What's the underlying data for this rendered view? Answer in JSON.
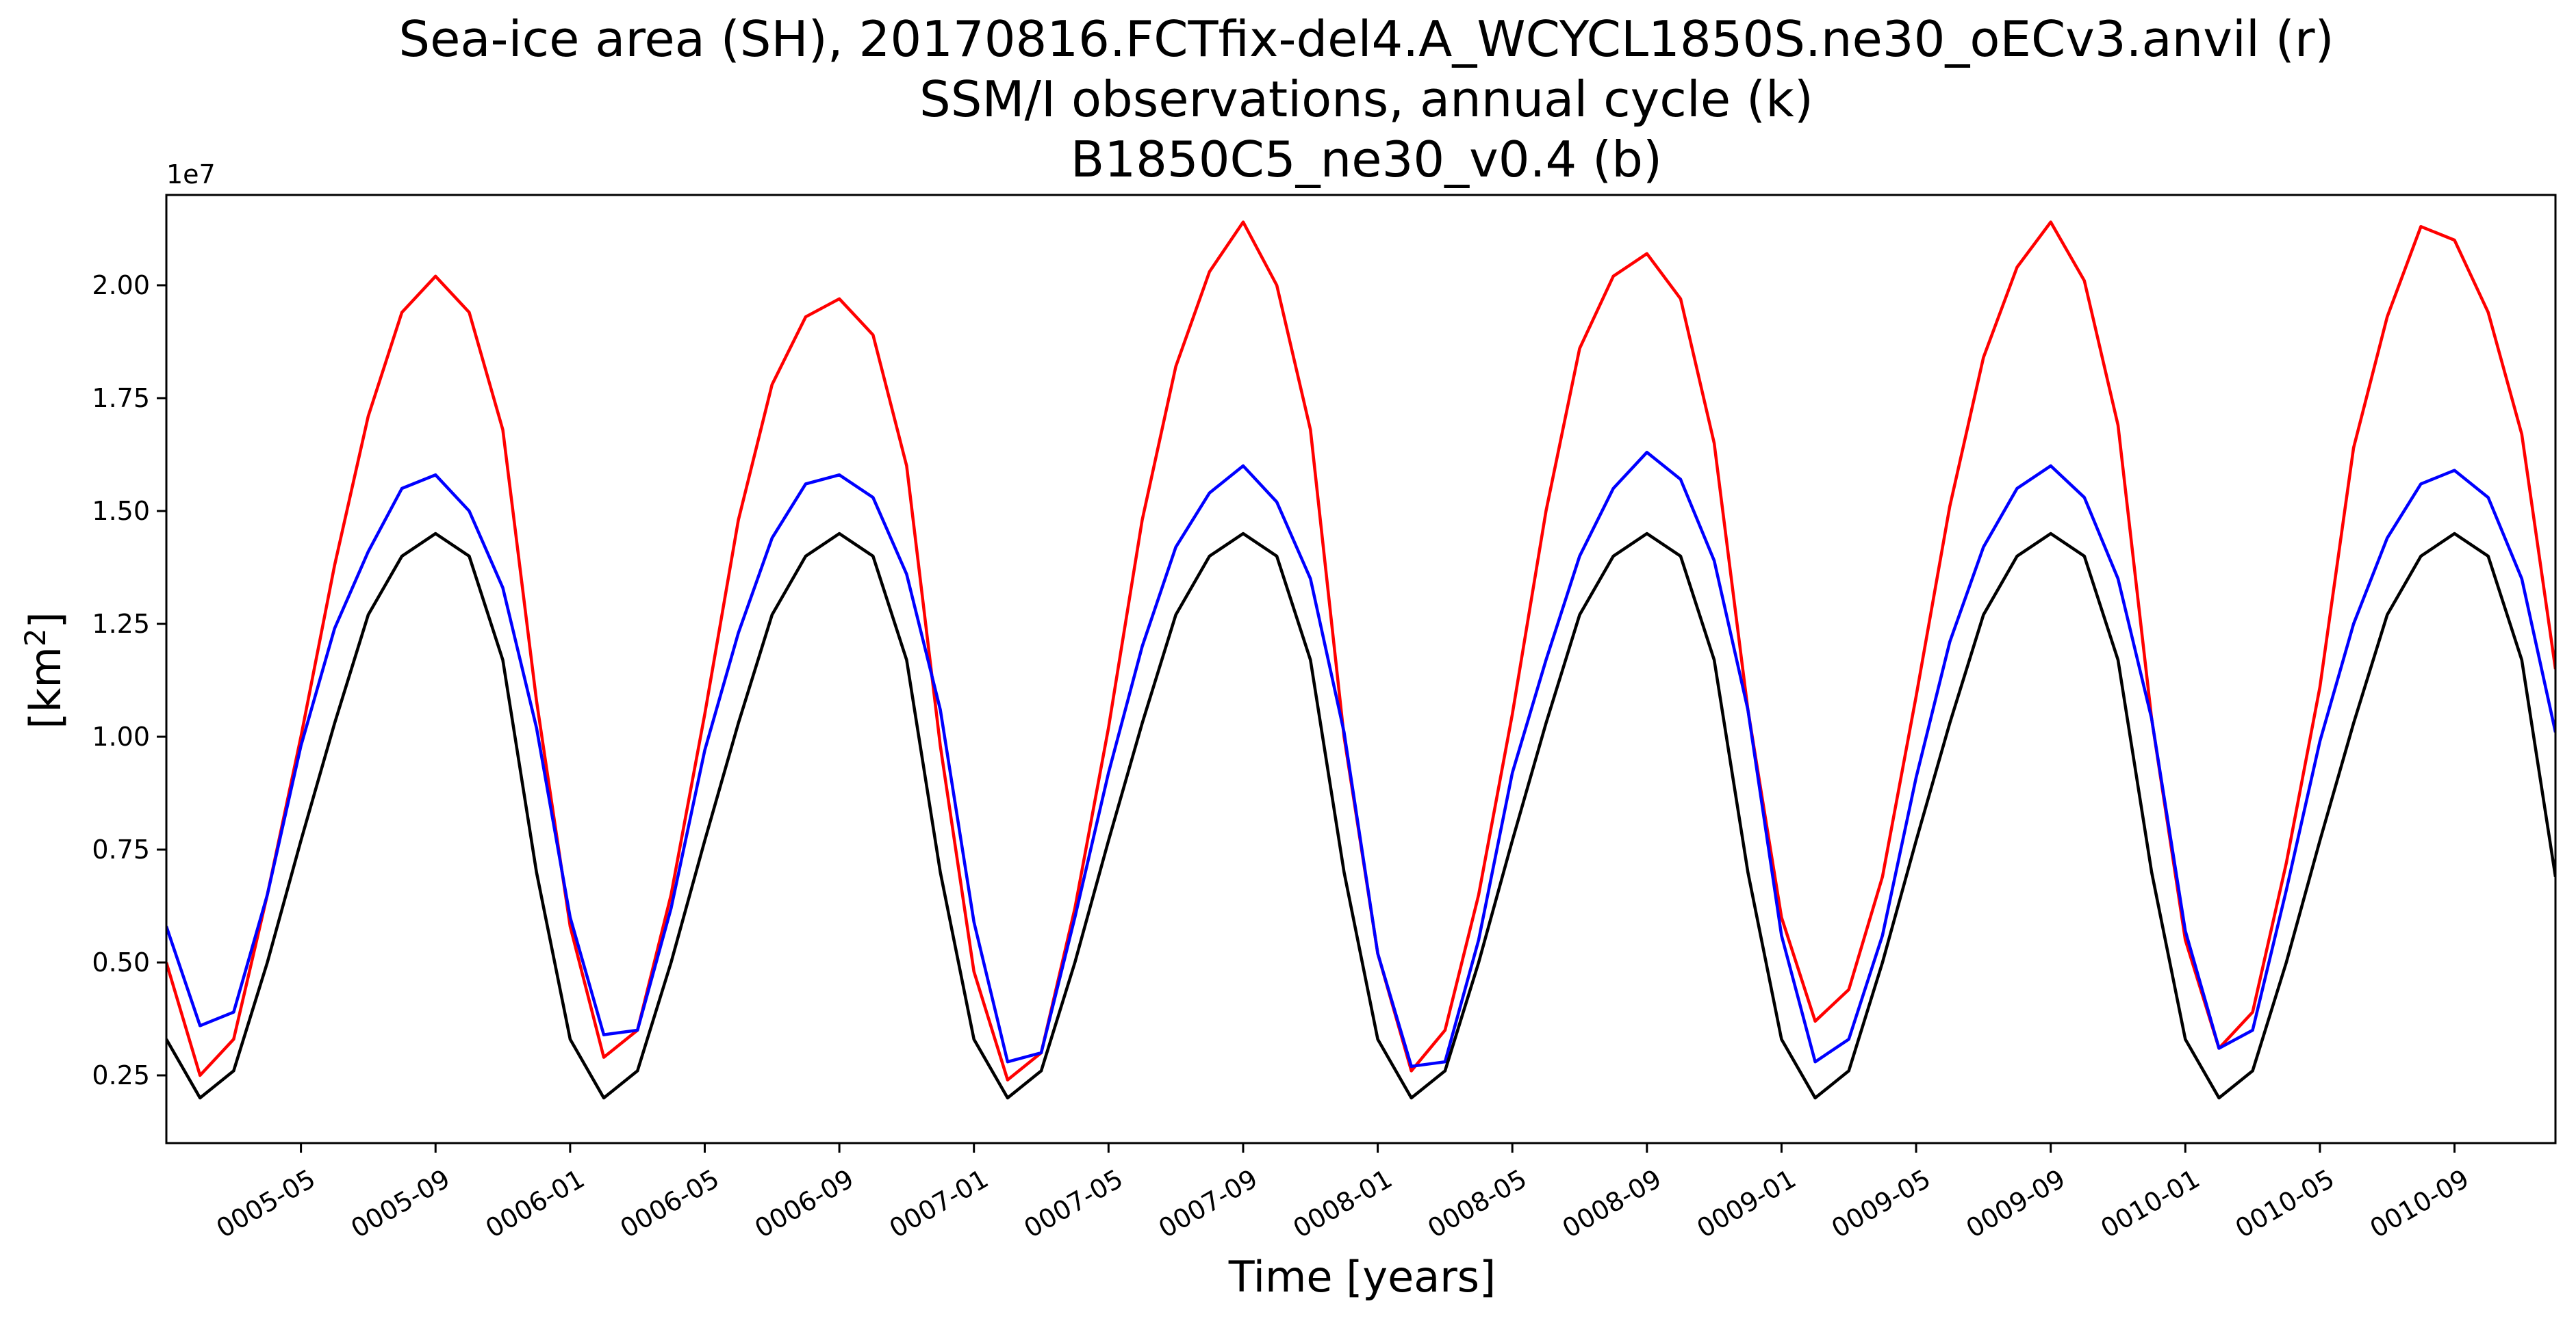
{
  "chart_data": {
    "type": "line",
    "title_lines": [
      "Sea-ice area (SH), 20170816.FCTfix-del4.A_WCYCL1850S.ne30_oECv3.anvil (r)",
      "SSM/I observations, annual cycle (k)",
      "B1850C5_ne30_v0.4 (b)"
    ],
    "xlabel": "Time [years]",
    "ylabel_base": "[km",
    "ylabel_sup": "2",
    "ylabel_end": "]",
    "y_offset_label": "1e7",
    "y_scale": 10000000,
    "xlim": [
      "0005-01",
      "0010-12"
    ],
    "ylim": [
      0.1,
      2.2
    ],
    "grid": false,
    "legend": "none",
    "x_ticks": [
      "0005-05",
      "0005-09",
      "0006-01",
      "0006-05",
      "0006-09",
      "0007-01",
      "0007-05",
      "0007-09",
      "0008-01",
      "0008-05",
      "0008-09",
      "0009-01",
      "0009-05",
      "0009-09",
      "0010-01",
      "0010-05",
      "0010-09"
    ],
    "y_ticks": [
      "0.25",
      "0.50",
      "0.75",
      "1.00",
      "1.25",
      "1.50",
      "1.75",
      "2.00"
    ],
    "x": [
      "0005-01",
      "0005-02",
      "0005-03",
      "0005-04",
      "0005-05",
      "0005-06",
      "0005-07",
      "0005-08",
      "0005-09",
      "0005-10",
      "0005-11",
      "0005-12",
      "0006-01",
      "0006-02",
      "0006-03",
      "0006-04",
      "0006-05",
      "0006-06",
      "0006-07",
      "0006-08",
      "0006-09",
      "0006-10",
      "0006-11",
      "0006-12",
      "0007-01",
      "0007-02",
      "0007-03",
      "0007-04",
      "0007-05",
      "0007-06",
      "0007-07",
      "0007-08",
      "0007-09",
      "0007-10",
      "0007-11",
      "0007-12",
      "0008-01",
      "0008-02",
      "0008-03",
      "0008-04",
      "0008-05",
      "0008-06",
      "0008-07",
      "0008-08",
      "0008-09",
      "0008-10",
      "0008-11",
      "0008-12",
      "0009-01",
      "0009-02",
      "0009-03",
      "0009-04",
      "0009-05",
      "0009-06",
      "0009-07",
      "0009-08",
      "0009-09",
      "0009-10",
      "0009-11",
      "0009-12",
      "0010-01",
      "0010-02",
      "0010-03",
      "0010-04",
      "0010-05",
      "0010-06",
      "0010-07",
      "0010-08",
      "0010-09",
      "0010-10",
      "0010-11",
      "0010-12"
    ],
    "series": [
      {
        "color": "#ff0000",
        "values": [
          0.5,
          0.25,
          0.33,
          0.65,
          1.0,
          1.38,
          1.71,
          1.94,
          2.02,
          1.94,
          1.68,
          1.08,
          0.58,
          0.29,
          0.35,
          0.65,
          1.05,
          1.48,
          1.78,
          1.93,
          1.97,
          1.89,
          1.6,
          0.98,
          0.48,
          0.24,
          0.3,
          0.62,
          1.02,
          1.48,
          1.82,
          2.03,
          2.14,
          2.0,
          1.68,
          1.0,
          0.52,
          0.26,
          0.35,
          0.65,
          1.05,
          1.5,
          1.86,
          2.02,
          2.07,
          1.97,
          1.65,
          1.06,
          0.6,
          0.37,
          0.44,
          0.69,
          1.09,
          1.51,
          1.84,
          2.04,
          2.14,
          2.01,
          1.69,
          1.04,
          0.55,
          0.31,
          0.39,
          0.72,
          1.11,
          1.64,
          1.93,
          2.13,
          2.1,
          1.94,
          1.67,
          1.15
        ]
      },
      {
        "color": "#0000ff",
        "values": [
          0.58,
          0.36,
          0.39,
          0.65,
          0.98,
          1.24,
          1.41,
          1.55,
          1.58,
          1.5,
          1.33,
          1.02,
          0.6,
          0.34,
          0.35,
          0.62,
          0.97,
          1.23,
          1.44,
          1.56,
          1.58,
          1.53,
          1.36,
          1.06,
          0.59,
          0.28,
          0.3,
          0.6,
          0.92,
          1.2,
          1.42,
          1.54,
          1.6,
          1.52,
          1.35,
          1.01,
          0.52,
          0.27,
          0.28,
          0.55,
          0.92,
          1.17,
          1.4,
          1.55,
          1.63,
          1.57,
          1.39,
          1.06,
          0.56,
          0.28,
          0.33,
          0.56,
          0.91,
          1.21,
          1.42,
          1.55,
          1.6,
          1.53,
          1.35,
          1.04,
          0.57,
          0.31,
          0.35,
          0.66,
          0.99,
          1.25,
          1.44,
          1.56,
          1.59,
          1.53,
          1.35,
          1.01
        ]
      },
      {
        "color": "#000000",
        "values": [
          0.33,
          0.2,
          0.26,
          0.5,
          0.77,
          1.03,
          1.27,
          1.4,
          1.45,
          1.4,
          1.17,
          0.7,
          0.33,
          0.2,
          0.26,
          0.5,
          0.77,
          1.03,
          1.27,
          1.4,
          1.45,
          1.4,
          1.17,
          0.7,
          0.33,
          0.2,
          0.26,
          0.5,
          0.77,
          1.03,
          1.27,
          1.4,
          1.45,
          1.4,
          1.17,
          0.7,
          0.33,
          0.2,
          0.26,
          0.5,
          0.77,
          1.03,
          1.27,
          1.4,
          1.45,
          1.4,
          1.17,
          0.7,
          0.33,
          0.2,
          0.26,
          0.5,
          0.77,
          1.03,
          1.27,
          1.4,
          1.45,
          1.4,
          1.17,
          0.7,
          0.33,
          0.2,
          0.26,
          0.5,
          0.77,
          1.03,
          1.27,
          1.4,
          1.45,
          1.4,
          1.17,
          0.69
        ]
      }
    ]
  }
}
